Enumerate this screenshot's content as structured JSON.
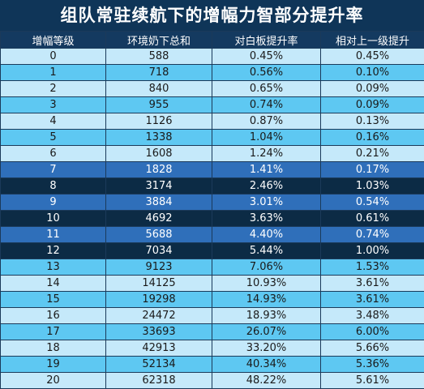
{
  "title": "组队常驻续航下的增幅力智部分提升率",
  "columns": [
    "增幅等级",
    "环境奶下总和",
    "对白板提升率",
    "相对上一级提升"
  ],
  "rows": [
    {
      "cells": [
        "0",
        "588",
        "0.45%",
        "0.45%"
      ],
      "style": "light"
    },
    {
      "cells": [
        "1",
        "718",
        "0.56%",
        "0.10%"
      ],
      "style": "mid"
    },
    {
      "cells": [
        "2",
        "840",
        "0.65%",
        "0.09%"
      ],
      "style": "light"
    },
    {
      "cells": [
        "3",
        "955",
        "0.74%",
        "0.09%"
      ],
      "style": "mid"
    },
    {
      "cells": [
        "4",
        "1126",
        "0.87%",
        "0.13%"
      ],
      "style": "light"
    },
    {
      "cells": [
        "5",
        "1338",
        "1.04%",
        "0.16%"
      ],
      "style": "mid"
    },
    {
      "cells": [
        "6",
        "1608",
        "1.24%",
        "0.21%"
      ],
      "style": "light"
    },
    {
      "cells": [
        "7",
        "1828",
        "1.41%",
        "0.17%"
      ],
      "style": "blue"
    },
    {
      "cells": [
        "8",
        "3174",
        "2.46%",
        "1.03%"
      ],
      "style": "dark"
    },
    {
      "cells": [
        "9",
        "3884",
        "3.01%",
        "0.54%"
      ],
      "style": "blue"
    },
    {
      "cells": [
        "10",
        "4692",
        "3.63%",
        "0.61%"
      ],
      "style": "dark"
    },
    {
      "cells": [
        "11",
        "5688",
        "4.40%",
        "0.74%"
      ],
      "style": "blue"
    },
    {
      "cells": [
        "12",
        "7034",
        "5.44%",
        "1.00%"
      ],
      "style": "dark"
    },
    {
      "cells": [
        "13",
        "9123",
        "7.06%",
        "1.53%"
      ],
      "style": "mid"
    },
    {
      "cells": [
        "14",
        "14125",
        "10.93%",
        "3.61%"
      ],
      "style": "light"
    },
    {
      "cells": [
        "15",
        "19298",
        "14.93%",
        "3.61%"
      ],
      "style": "mid"
    },
    {
      "cells": [
        "16",
        "24472",
        "18.93%",
        "3.48%"
      ],
      "style": "light"
    },
    {
      "cells": [
        "17",
        "33693",
        "26.07%",
        "6.00%"
      ],
      "style": "mid"
    },
    {
      "cells": [
        "18",
        "42913",
        "33.20%",
        "5.66%"
      ],
      "style": "light"
    },
    {
      "cells": [
        "19",
        "52134",
        "40.34%",
        "5.36%"
      ],
      "style": "mid"
    },
    {
      "cells": [
        "20",
        "62318",
        "48.22%",
        "5.61%"
      ],
      "style": "light"
    }
  ]
}
